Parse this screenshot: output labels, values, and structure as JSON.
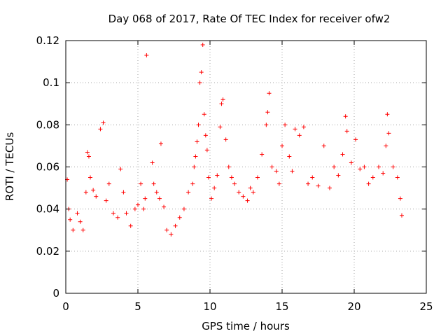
{
  "chart_data": {
    "type": "scatter",
    "title": "Day 068 of 2017, Rate Of TEC Index for receiver ofw2",
    "xlabel": "GPS time / hours",
    "ylabel": "ROTI / TECUs",
    "xlim": [
      0,
      25
    ],
    "ylim": [
      0,
      0.12
    ],
    "xticks": [
      "0",
      "5",
      "10",
      "15",
      "20",
      "25"
    ],
    "yticks": [
      "0",
      "0.02",
      "0.04",
      "0.06",
      "0.08",
      "0.1",
      "0.12"
    ],
    "grid": true,
    "marker": "+",
    "color": "#ff0000",
    "series": [
      {
        "name": "ROTI",
        "points": [
          [
            0.1,
            0.054
          ],
          [
            0.2,
            0.04
          ],
          [
            0.3,
            0.035
          ],
          [
            0.5,
            0.03
          ],
          [
            0.8,
            0.038
          ],
          [
            1.0,
            0.034
          ],
          [
            1.2,
            0.03
          ],
          [
            1.4,
            0.048
          ],
          [
            1.5,
            0.067
          ],
          [
            1.6,
            0.065
          ],
          [
            1.7,
            0.055
          ],
          [
            1.9,
            0.049
          ],
          [
            2.1,
            0.046
          ],
          [
            2.4,
            0.078
          ],
          [
            2.6,
            0.081
          ],
          [
            2.8,
            0.044
          ],
          [
            3.0,
            0.052
          ],
          [
            3.3,
            0.038
          ],
          [
            3.6,
            0.036
          ],
          [
            3.8,
            0.059
          ],
          [
            4.0,
            0.048
          ],
          [
            4.2,
            0.038
          ],
          [
            4.5,
            0.032
          ],
          [
            4.8,
            0.04
          ],
          [
            5.0,
            0.042
          ],
          [
            5.2,
            0.052
          ],
          [
            5.4,
            0.04
          ],
          [
            5.5,
            0.045
          ],
          [
            5.6,
            0.113
          ],
          [
            6.0,
            0.062
          ],
          [
            6.1,
            0.052
          ],
          [
            6.3,
            0.048
          ],
          [
            6.5,
            0.045
          ],
          [
            6.6,
            0.071
          ],
          [
            6.8,
            0.041
          ],
          [
            7.0,
            0.03
          ],
          [
            7.3,
            0.028
          ],
          [
            7.6,
            0.032
          ],
          [
            7.9,
            0.036
          ],
          [
            8.2,
            0.04
          ],
          [
            8.5,
            0.048
          ],
          [
            8.8,
            0.052
          ],
          [
            8.9,
            0.06
          ],
          [
            9.0,
            0.065
          ],
          [
            9.1,
            0.072
          ],
          [
            9.2,
            0.08
          ],
          [
            9.3,
            0.1
          ],
          [
            9.4,
            0.105
          ],
          [
            9.5,
            0.118
          ],
          [
            9.6,
            0.085
          ],
          [
            9.7,
            0.075
          ],
          [
            9.8,
            0.068
          ],
          [
            9.9,
            0.055
          ],
          [
            10.1,
            0.045
          ],
          [
            10.3,
            0.05
          ],
          [
            10.5,
            0.056
          ],
          [
            10.7,
            0.079
          ],
          [
            10.8,
            0.09
          ],
          [
            10.9,
            0.092
          ],
          [
            11.1,
            0.073
          ],
          [
            11.3,
            0.06
          ],
          [
            11.5,
            0.055
          ],
          [
            11.7,
            0.052
          ],
          [
            12.0,
            0.048
          ],
          [
            12.3,
            0.046
          ],
          [
            12.6,
            0.044
          ],
          [
            12.8,
            0.05
          ],
          [
            13.0,
            0.048
          ],
          [
            13.3,
            0.055
          ],
          [
            13.6,
            0.066
          ],
          [
            13.9,
            0.08
          ],
          [
            14.0,
            0.086
          ],
          [
            14.1,
            0.095
          ],
          [
            14.3,
            0.06
          ],
          [
            14.6,
            0.058
          ],
          [
            14.8,
            0.052
          ],
          [
            15.0,
            0.07
          ],
          [
            15.2,
            0.08
          ],
          [
            15.5,
            0.065
          ],
          [
            15.7,
            0.058
          ],
          [
            15.9,
            0.078
          ],
          [
            16.2,
            0.075
          ],
          [
            16.5,
            0.079
          ],
          [
            16.8,
            0.052
          ],
          [
            17.1,
            0.055
          ],
          [
            17.5,
            0.051
          ],
          [
            17.9,
            0.07
          ],
          [
            18.3,
            0.05
          ],
          [
            18.6,
            0.06
          ],
          [
            18.9,
            0.056
          ],
          [
            19.2,
            0.066
          ],
          [
            19.4,
            0.084
          ],
          [
            19.5,
            0.077
          ],
          [
            19.8,
            0.062
          ],
          [
            20.1,
            0.073
          ],
          [
            20.4,
            0.059
          ],
          [
            20.7,
            0.06
          ],
          [
            21.0,
            0.052
          ],
          [
            21.3,
            0.055
          ],
          [
            21.7,
            0.06
          ],
          [
            22.0,
            0.057
          ],
          [
            22.2,
            0.07
          ],
          [
            22.3,
            0.085
          ],
          [
            22.4,
            0.076
          ],
          [
            22.7,
            0.06
          ],
          [
            23.0,
            0.055
          ],
          [
            23.2,
            0.045
          ],
          [
            23.3,
            0.037
          ]
        ]
      }
    ]
  }
}
